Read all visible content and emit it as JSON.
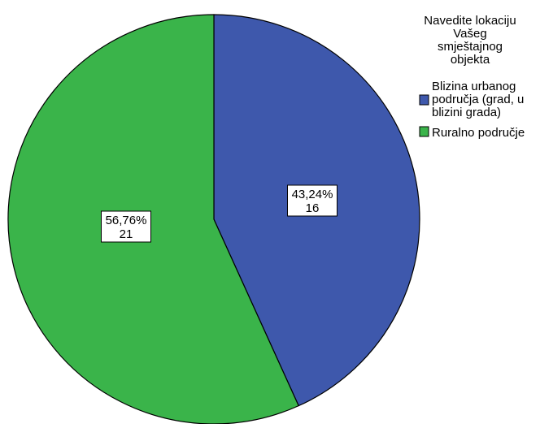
{
  "chart_data": {
    "type": "pie",
    "legend": {
      "title": [
        "Navedite lokaciju",
        "Vašeg",
        "smještajnog",
        "objekta"
      ],
      "placement": "top-right",
      "entries": [
        {
          "label": [
            "Blizina urbanog",
            "područja (grad, u",
            "blizini grada)"
          ],
          "color": "#3e58ac"
        },
        {
          "label": [
            "Ruralno područje"
          ],
          "color": "#3ab44a"
        }
      ]
    },
    "slices": [
      {
        "name": "Blizina urbanog područja (grad, u blizini grada)",
        "value": 16,
        "percent_label": "43,24%",
        "count_label": "16",
        "color": "#3e58ac"
      },
      {
        "name": "Ruralno područje",
        "value": 21,
        "percent_label": "56,76%",
        "count_label": "21",
        "color": "#3ab44a"
      }
    ],
    "start_angle_deg": 0,
    "direction": "clockwise"
  }
}
